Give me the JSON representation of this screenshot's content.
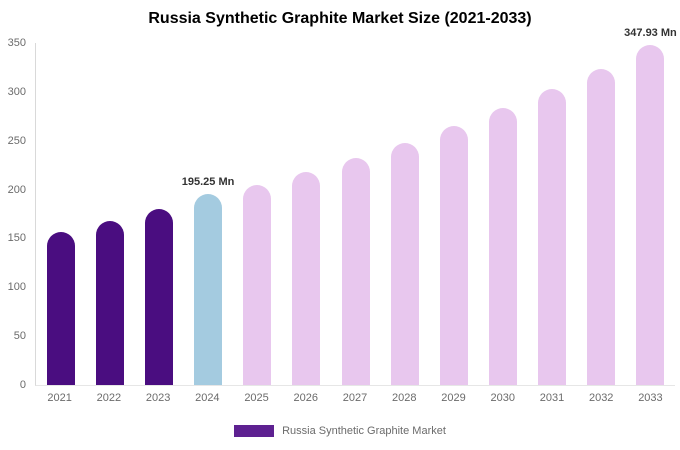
{
  "title": "Russia Synthetic Graphite Market Size (2021-2033)",
  "legend": {
    "label": "Russia Synthetic Graphite Market",
    "swatch_color": "#5e2191"
  },
  "chart_data": {
    "type": "bar",
    "title": "Russia Synthetic Graphite Market Size (2021-2033)",
    "categories": [
      "2021",
      "2022",
      "2023",
      "2024",
      "2025",
      "2026",
      "2027",
      "2028",
      "2029",
      "2030",
      "2031",
      "2032",
      "2033"
    ],
    "values": [
      157,
      168,
      180,
      195.25,
      205,
      218,
      232,
      248,
      265,
      283,
      303,
      323,
      347.93
    ],
    "bar_colors": [
      "#4a0d80",
      "#4a0d80",
      "#4a0d80",
      "#a4cbe0",
      "#e8c7ee",
      "#e8c7ee",
      "#e8c7ee",
      "#e8c7ee",
      "#e8c7ee",
      "#e8c7ee",
      "#e8c7ee",
      "#e8c7ee",
      "#e8c7ee"
    ],
    "annotations": [
      {
        "category": "2024",
        "text": "195.25 Mn"
      },
      {
        "category": "2033",
        "text": "347.93 Mn"
      }
    ],
    "xlabel": "",
    "ylabel": "",
    "ylim": [
      0,
      350
    ],
    "ytick_step": 50,
    "grid": false,
    "legend_position": "bottom"
  }
}
